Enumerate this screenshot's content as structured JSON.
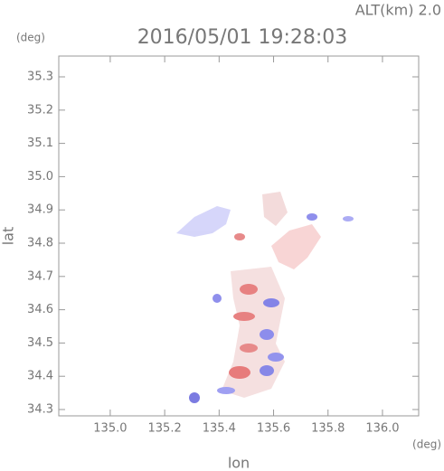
{
  "chart_data": {
    "type": "map",
    "title": "2016/05/01 19:28:03",
    "altitude_label": "ALT(km)  2.0",
    "x_unit": "(deg)",
    "y_unit": "(deg)",
    "x_label": "lon",
    "y_label": "lat",
    "xlim": [
      134.811,
      136.133
    ],
    "ylim": [
      34.281,
      35.3625
    ],
    "xticks": [
      {
        "value": 135.0,
        "label": "135.0"
      },
      135.2,
      135.4,
      135.6,
      135.8,
      {
        "value": 136.0,
        "label": "136.0"
      }
    ],
    "yticks": [
      34.3,
      34.4,
      34.5,
      34.6,
      34.7,
      34.8,
      34.9,
      {
        "value": 35.0,
        "label": "35.0"
      },
      35.1,
      35.2,
      35.3
    ]
  }
}
